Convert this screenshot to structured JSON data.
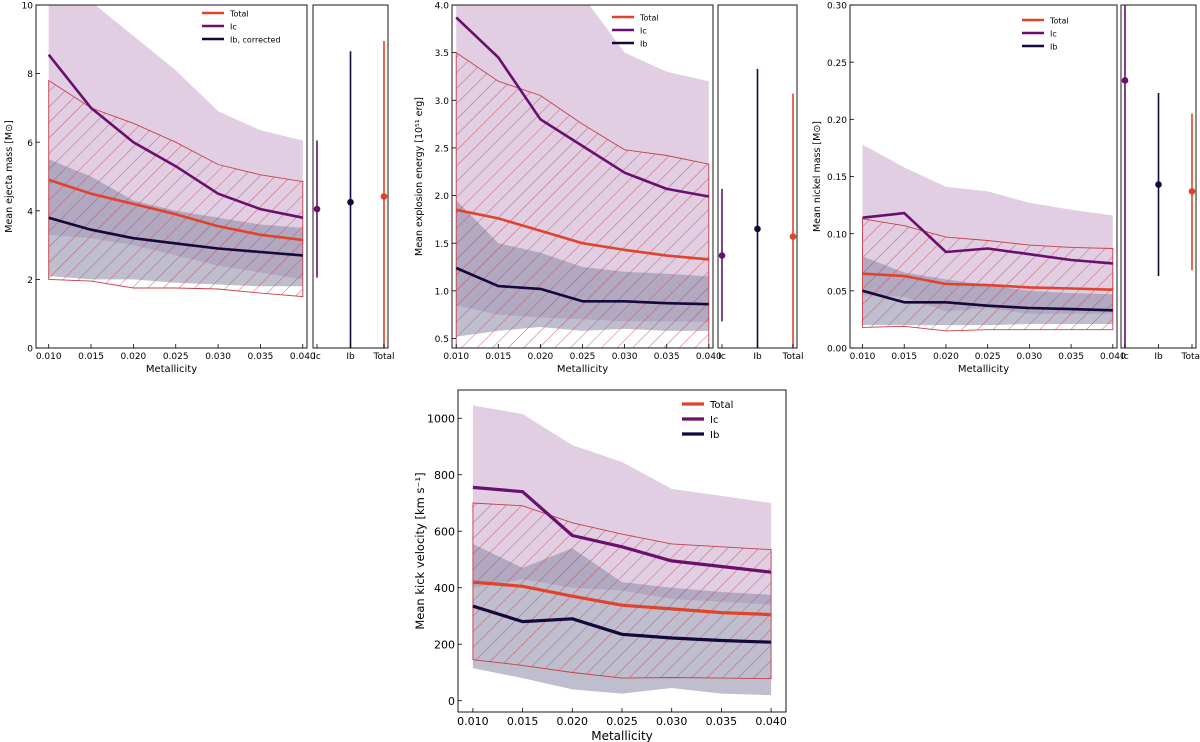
{
  "colors": {
    "total": "#e0432c",
    "ic": "#6a0f6e",
    "ib": "#15083a",
    "ic_band": "#c9a6cb",
    "ib_band": "#8a88a8",
    "hatch": "#c4414a"
  },
  "chart_data": [
    {
      "id": "ejecta",
      "type": "line",
      "title": "",
      "xlabel": "Metallicity",
      "ylabel": "Mean ejecta mass [M⊙]",
      "x": [
        0.01,
        0.015,
        0.02,
        0.025,
        0.03,
        0.035,
        0.04
      ],
      "xticklabels": [
        "0.010",
        "0.015",
        "0.020",
        "0.025",
        "0.030",
        "0.035",
        "0.040"
      ],
      "xlim": [
        0.0085,
        0.0405
      ],
      "ylim": [
        0,
        10
      ],
      "yticks": [
        0,
        2,
        4,
        6,
        8,
        10
      ],
      "yticklabels": [
        "0",
        "2",
        "4",
        "6",
        "8",
        "10"
      ],
      "legend_placement": "top-right",
      "series": [
        {
          "name": "Total",
          "key": "total",
          "values": [
            4.9,
            4.5,
            4.2,
            3.9,
            3.55,
            3.3,
            3.15
          ],
          "band_lower": [
            2.0,
            1.95,
            1.75,
            1.75,
            1.72,
            1.6,
            1.5
          ],
          "band_upper": [
            7.8,
            7.0,
            6.55,
            6.0,
            5.35,
            5.05,
            4.85
          ],
          "band_style": "hatch"
        },
        {
          "name": "Ic",
          "key": "ic",
          "values": [
            8.55,
            7.0,
            6.0,
            5.3,
            4.5,
            4.05,
            3.8
          ],
          "band_lower": [
            3.3,
            3.2,
            3.0,
            2.7,
            2.4,
            2.2,
            2.0
          ],
          "band_upper": [
            11.0,
            10.1,
            9.1,
            8.1,
            6.9,
            6.35,
            6.05
          ],
          "band_style": "fill"
        },
        {
          "name": "Ib, corrected",
          "key": "ib",
          "values": [
            3.8,
            3.45,
            3.2,
            3.05,
            2.9,
            2.8,
            2.7
          ],
          "band_lower": [
            2.1,
            2.0,
            2.0,
            1.9,
            1.85,
            1.8,
            1.8
          ],
          "band_upper": [
            5.5,
            5.0,
            4.3,
            4.0,
            3.8,
            3.6,
            3.5
          ],
          "band_style": "fill"
        }
      ],
      "side": {
        "categories": [
          "Ic",
          "Ib",
          "Total"
        ],
        "keys": [
          "ic",
          "ib",
          "total"
        ],
        "values": [
          4.05,
          4.25,
          4.42
        ],
        "err_low": [
          2.05,
          0.0,
          0.0
        ],
        "err_high": [
          6.05,
          8.65,
          8.95
        ]
      }
    },
    {
      "id": "energy",
      "type": "line",
      "title": "",
      "xlabel": "Metallicity",
      "ylabel": "Mean explosion energy [10⁵¹ erg]",
      "x": [
        0.01,
        0.015,
        0.02,
        0.025,
        0.03,
        0.035,
        0.04
      ],
      "xticklabels": [
        "0.010",
        "0.015",
        "0.020",
        "0.025",
        "0.030",
        "0.035",
        "0.040"
      ],
      "xlim": [
        0.0095,
        0.0405
      ],
      "ylim": [
        0.4,
        4.0
      ],
      "yticks": [
        0.5,
        1.0,
        1.5,
        2.0,
        2.5,
        3.0,
        3.5,
        4.0
      ],
      "yticklabels": [
        "0.5",
        "1.0",
        "1.5",
        "2.0",
        "2.5",
        "3.0",
        "3.5",
        "4.0"
      ],
      "legend_placement": "top-right",
      "series": [
        {
          "name": "Total",
          "key": "total",
          "values": [
            1.85,
            1.76,
            1.63,
            1.5,
            1.43,
            1.37,
            1.33
          ],
          "band_lower": [
            0.4,
            0.4,
            0.4,
            0.4,
            0.4,
            0.4,
            0.4
          ],
          "band_upper": [
            3.5,
            3.2,
            3.05,
            2.75,
            2.48,
            2.42,
            2.33
          ],
          "band_style": "hatch"
        },
        {
          "name": "Ic",
          "key": "ic",
          "values": [
            3.87,
            3.45,
            2.8,
            2.52,
            2.24,
            2.07,
            1.99
          ],
          "band_lower": [
            0.85,
            0.75,
            0.72,
            0.7,
            0.68,
            0.68,
            0.67
          ],
          "band_upper": [
            5.0,
            4.8,
            4.5,
            4.1,
            3.5,
            3.3,
            3.2
          ],
          "band_style": "fill"
        },
        {
          "name": "Ib",
          "key": "ib",
          "values": [
            1.24,
            1.05,
            1.02,
            0.89,
            0.89,
            0.87,
            0.86
          ],
          "band_lower": [
            0.52,
            0.58,
            0.62,
            0.58,
            0.6,
            0.58,
            0.58
          ],
          "band_upper": [
            1.95,
            1.5,
            1.4,
            1.25,
            1.2,
            1.18,
            1.15
          ],
          "band_style": "fill"
        }
      ],
      "side": {
        "categories": [
          "Ic",
          "Ib",
          "Total"
        ],
        "keys": [
          "ic",
          "ib",
          "total"
        ],
        "values": [
          1.37,
          1.65,
          1.57
        ],
        "err_low": [
          0.68,
          0.4,
          0.4
        ],
        "err_high": [
          2.07,
          3.33,
          3.07
        ]
      }
    },
    {
      "id": "nickel",
      "type": "line",
      "title": "",
      "xlabel": "Metallicity",
      "ylabel": "Mean nickel mass [M⊙]",
      "x": [
        0.01,
        0.015,
        0.02,
        0.025,
        0.03,
        0.035,
        0.04
      ],
      "xticklabels": [
        "0.010",
        "0.015",
        "0.020",
        "0.025",
        "0.030",
        "0.035",
        "0.040"
      ],
      "xlim": [
        0.0085,
        0.0405
      ],
      "ylim": [
        0,
        0.3
      ],
      "yticks": [
        0.0,
        0.05,
        0.1,
        0.15,
        0.2,
        0.25,
        0.3
      ],
      "yticklabels": [
        "0.00",
        "0.05",
        "0.10",
        "0.15",
        "0.20",
        "0.25",
        "0.30"
      ],
      "legend_placement": "top-right",
      "series": [
        {
          "name": "Total",
          "key": "total",
          "values": [
            0.065,
            0.063,
            0.056,
            0.055,
            0.053,
            0.052,
            0.051
          ],
          "band_lower": [
            0.018,
            0.019,
            0.015,
            0.016,
            0.016,
            0.016,
            0.016
          ],
          "band_upper": [
            0.113,
            0.107,
            0.097,
            0.094,
            0.09,
            0.088,
            0.087
          ],
          "band_style": "hatch"
        },
        {
          "name": "Ic",
          "key": "ic",
          "values": [
            0.114,
            0.118,
            0.084,
            0.087,
            0.082,
            0.077,
            0.074
          ],
          "band_lower": [
            0.046,
            0.045,
            0.032,
            0.035,
            0.03,
            0.03,
            0.03
          ],
          "band_upper": [
            0.178,
            0.158,
            0.141,
            0.137,
            0.127,
            0.121,
            0.116
          ],
          "band_style": "fill"
        },
        {
          "name": "Ib",
          "key": "ib",
          "values": [
            0.05,
            0.04,
            0.04,
            0.037,
            0.035,
            0.034,
            0.033
          ],
          "band_lower": [
            0.02,
            0.02,
            0.02,
            0.02,
            0.021,
            0.021,
            0.021
          ],
          "band_upper": [
            0.08,
            0.066,
            0.06,
            0.055,
            0.05,
            0.048,
            0.047
          ],
          "band_style": "fill"
        }
      ],
      "side": {
        "categories": [
          "Ic",
          "Ib",
          "Total"
        ],
        "keys": [
          "ic",
          "ib",
          "total"
        ],
        "values": [
          0.234,
          0.143,
          0.137
        ],
        "err_low": [
          0.0,
          0.063,
          0.068
        ],
        "err_high": [
          0.31,
          0.223,
          0.205
        ]
      }
    },
    {
      "id": "kick",
      "type": "line",
      "title": "",
      "xlabel": "Metallicity",
      "ylabel": "Mean kick velocity [km s⁻¹]",
      "x": [
        0.01,
        0.015,
        0.02,
        0.025,
        0.03,
        0.035,
        0.04
      ],
      "xticklabels": [
        "0.010",
        "0.015",
        "0.020",
        "0.025",
        "0.030",
        "0.035",
        "0.040"
      ],
      "xlim": [
        0.0085,
        0.0415
      ],
      "ylim": [
        -40,
        1100
      ],
      "yticks": [
        0,
        200,
        400,
        600,
        800,
        1000
      ],
      "yticklabels": [
        "0",
        "200",
        "400",
        "600",
        "800",
        "1000"
      ],
      "legend_placement": "top-right",
      "series": [
        {
          "name": "Total",
          "key": "total",
          "values": [
            420,
            405,
            370,
            338,
            325,
            312,
            305
          ],
          "band_lower": [
            145,
            125,
            100,
            80,
            82,
            80,
            78
          ],
          "band_upper": [
            700,
            690,
            630,
            590,
            555,
            545,
            535
          ],
          "band_style": "hatch"
        },
        {
          "name": "Ic",
          "key": "ic",
          "values": [
            755,
            740,
            585,
            545,
            495,
            475,
            455
          ],
          "band_lower": [
            400,
            430,
            400,
            390,
            360,
            350,
            340
          ],
          "band_upper": [
            1045,
            1015,
            905,
            845,
            750,
            725,
            700
          ],
          "band_style": "fill"
        },
        {
          "name": "Ib",
          "key": "ib",
          "values": [
            335,
            280,
            290,
            235,
            222,
            213,
            207
          ],
          "band_lower": [
            115,
            80,
            40,
            25,
            45,
            25,
            20
          ],
          "band_upper": [
            555,
            470,
            540,
            420,
            400,
            385,
            375
          ],
          "band_style": "fill"
        }
      ]
    }
  ]
}
